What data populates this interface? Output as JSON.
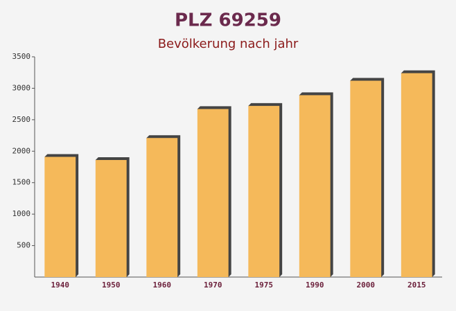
{
  "chart_data": {
    "type": "bar",
    "title": "PLZ 69259",
    "subtitle": "Bevölkerung nach jahr",
    "categories": [
      "1940",
      "1950",
      "1960",
      "1970",
      "1975",
      "1990",
      "2000",
      "2015"
    ],
    "values": [
      1910,
      1860,
      2210,
      2670,
      2720,
      2890,
      3120,
      3240
    ],
    "color": "#f5b95a",
    "ylim": [
      0,
      3500
    ],
    "yticks": [
      500,
      1000,
      1500,
      2000,
      2500,
      3000,
      3500
    ],
    "grid": false
  }
}
